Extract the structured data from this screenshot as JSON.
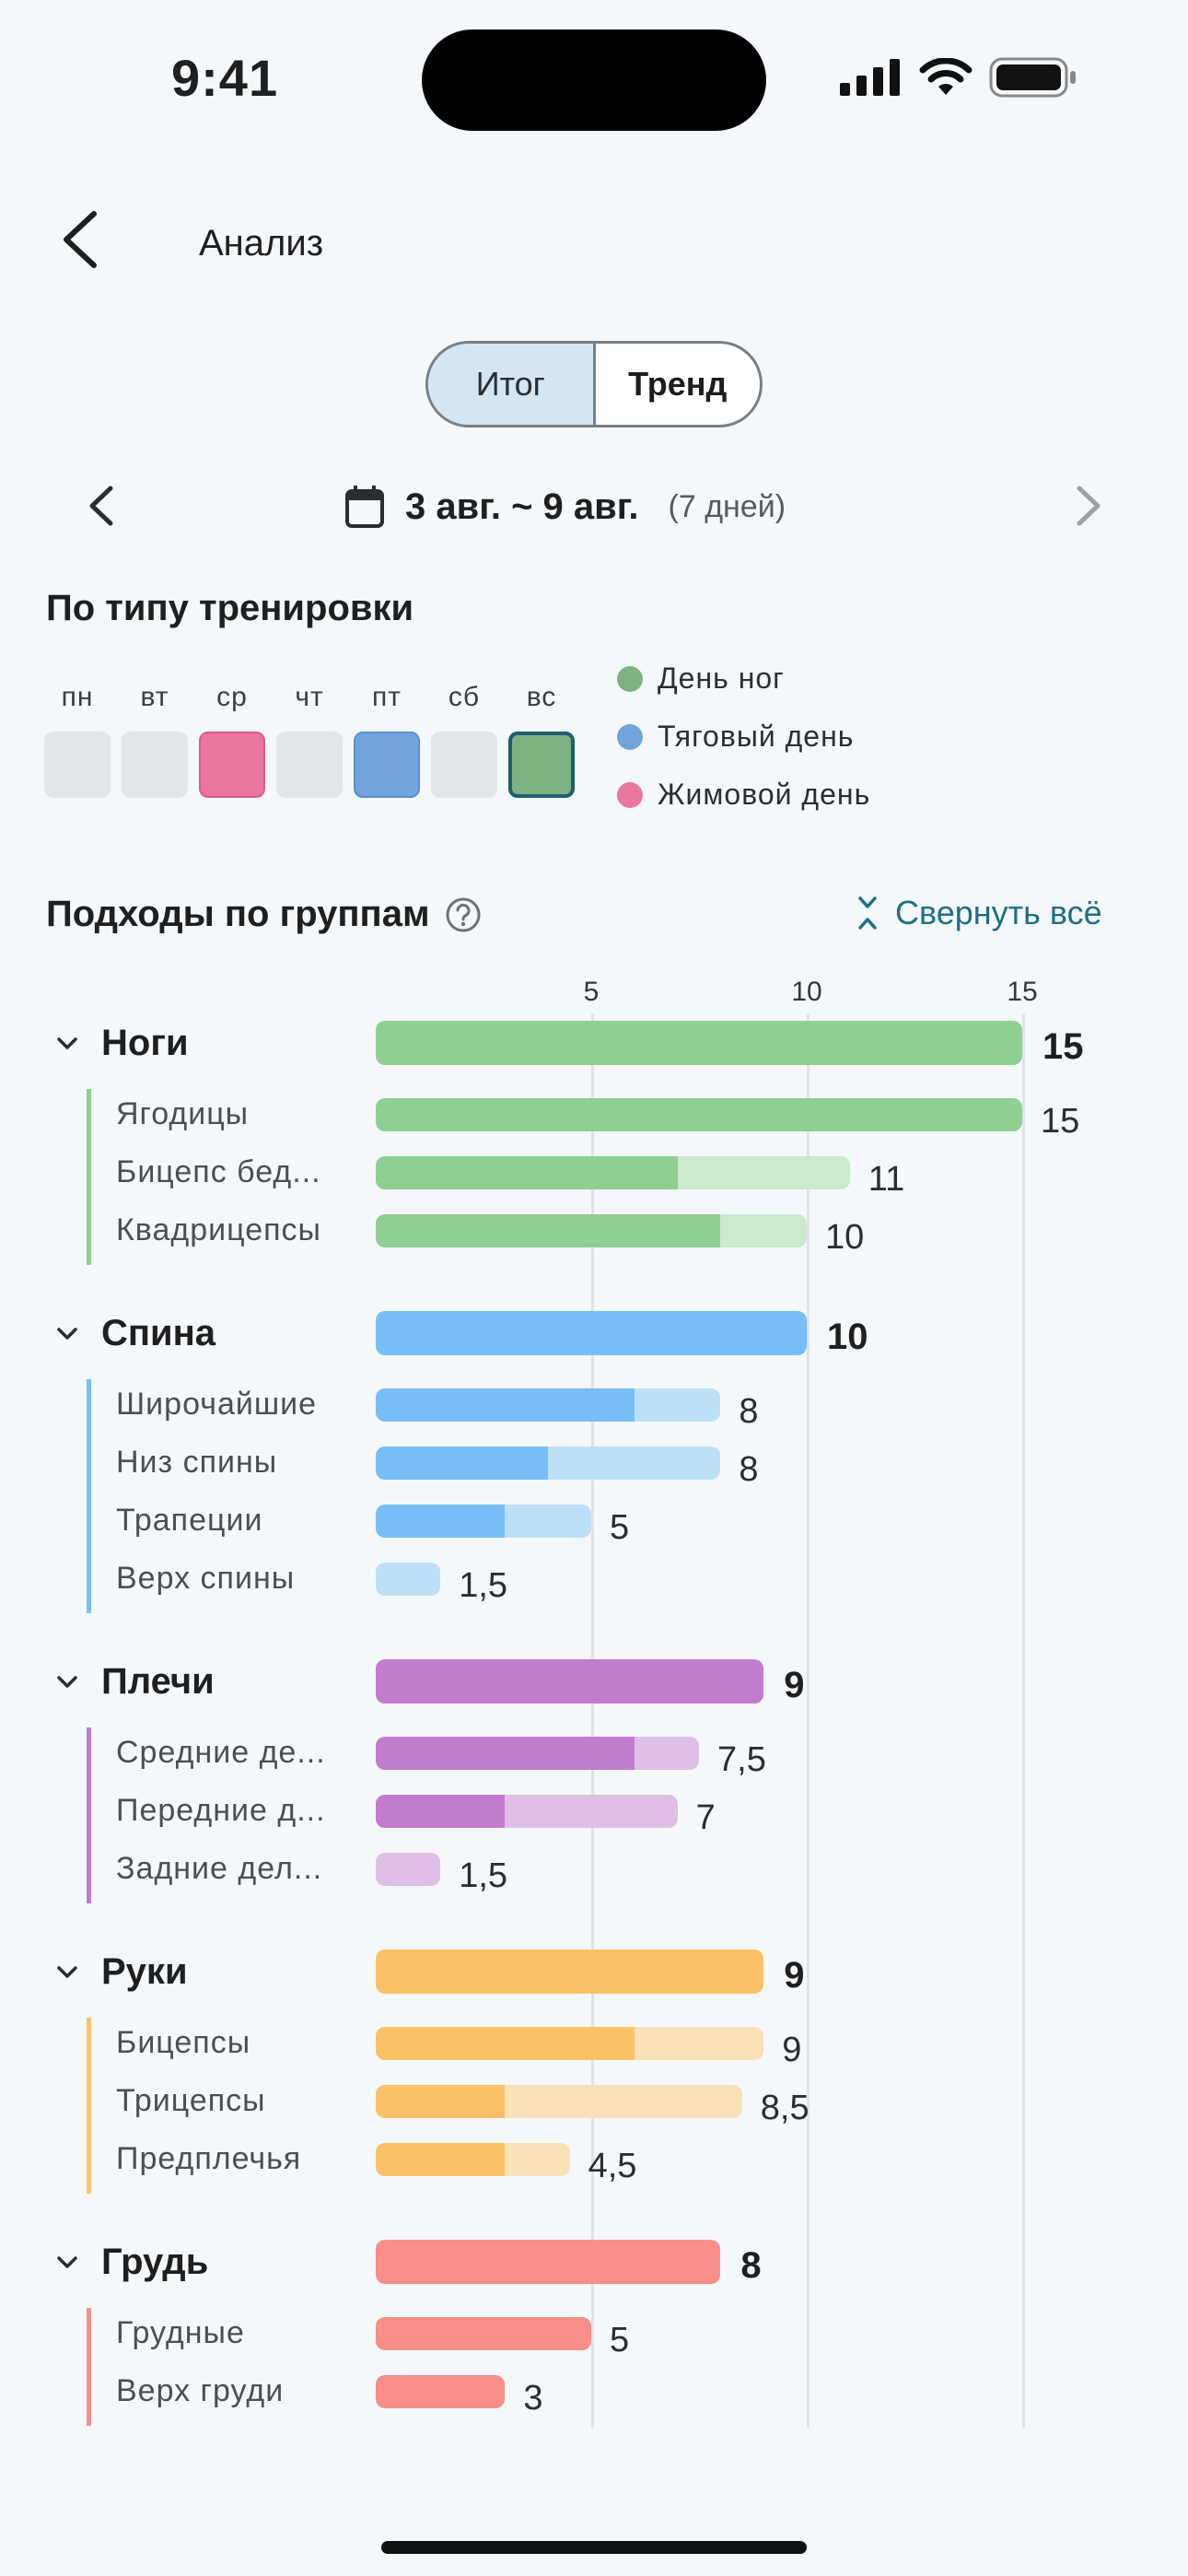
{
  "status": {
    "time": "9:41"
  },
  "header": {
    "title": "Анализ"
  },
  "segments": {
    "active": "Итог",
    "inactive": "Тренд"
  },
  "range": {
    "text": "3 авг. ~ 9 авг.",
    "days": "(7 дней)"
  },
  "by_type": {
    "title": "По типу тренировки",
    "days": [
      {
        "label": "пн",
        "color": "#e3e6e9",
        "selected": false
      },
      {
        "label": "вт",
        "color": "#e3e6e9",
        "selected": false
      },
      {
        "label": "ср",
        "color": "#e8769f",
        "selected": false
      },
      {
        "label": "чт",
        "color": "#e3e6e9",
        "selected": false
      },
      {
        "label": "пт",
        "color": "#72a4dc",
        "selected": false
      },
      {
        "label": "сб",
        "color": "#e3e6e9",
        "selected": false
      },
      {
        "label": "вс",
        "color": "#7fb283",
        "selected": true
      }
    ],
    "legend": [
      {
        "label": "День ног",
        "color": "#7fb283"
      },
      {
        "label": "Тяговый день",
        "color": "#72a4dc"
      },
      {
        "label": "Жимовой день",
        "color": "#e8769f"
      }
    ]
  },
  "groups_section": {
    "title": "Подходы по группам",
    "collapse_label": "Свернуть всё"
  },
  "chart_data": {
    "type": "bar",
    "axis_ticks": [
      5,
      10,
      15
    ],
    "xlim": [
      0,
      15
    ],
    "groups": [
      {
        "name": "Ноги",
        "total": "15",
        "total_num": 15,
        "color": "#8fcf92",
        "light": "#cbe9cd",
        "muscles": [
          {
            "name": "Ягодицы",
            "value": "15",
            "total": 15,
            "primary": 15
          },
          {
            "name": "Бицепс бед...",
            "value": "11",
            "total": 11,
            "primary": 7
          },
          {
            "name": "Квадрицепсы",
            "value": "10",
            "total": 10,
            "primary": 8
          }
        ]
      },
      {
        "name": "Спина",
        "total": "10",
        "total_num": 10,
        "color": "#77bef7",
        "light": "#bde0f9",
        "muscles": [
          {
            "name": "Широчайшие",
            "value": "8",
            "total": 8,
            "primary": 6
          },
          {
            "name": "Низ спины",
            "value": "8",
            "total": 8,
            "primary": 4
          },
          {
            "name": "Трапеции",
            "value": "5",
            "total": 5,
            "primary": 3
          },
          {
            "name": "Верх спины",
            "value": "1,5",
            "total": 1.5,
            "primary": 0
          }
        ]
      },
      {
        "name": "Плечи",
        "total": "9",
        "total_num": 9,
        "color": "#c27ccf",
        "light": "#e0bfe6",
        "muscles": [
          {
            "name": "Средние де...",
            "value": "7,5",
            "total": 7.5,
            "primary": 6
          },
          {
            "name": "Передние д...",
            "value": "7",
            "total": 7,
            "primary": 3
          },
          {
            "name": "Задние дел...",
            "value": "1,5",
            "total": 1.5,
            "primary": 0
          }
        ]
      },
      {
        "name": "Руки",
        "total": "9",
        "total_num": 9,
        "color": "#fbc168",
        "light": "#f9e0b8",
        "muscles": [
          {
            "name": "Бицепсы",
            "value": "9",
            "total": 9,
            "primary": 6
          },
          {
            "name": "Трицепсы",
            "value": "8,5",
            "total": 8.5,
            "primary": 3
          },
          {
            "name": "Предплечья",
            "value": "4,5",
            "total": 4.5,
            "primary": 3
          }
        ]
      },
      {
        "name": "Грудь",
        "total": "8",
        "total_num": 8,
        "color": "#f78e87",
        "light": "#fbc8c3",
        "muscles": [
          {
            "name": "Грудные",
            "value": "5",
            "total": 5,
            "primary": 5
          },
          {
            "name": "Верх груди",
            "value": "3",
            "total": 3,
            "primary": 3
          }
        ]
      }
    ]
  }
}
